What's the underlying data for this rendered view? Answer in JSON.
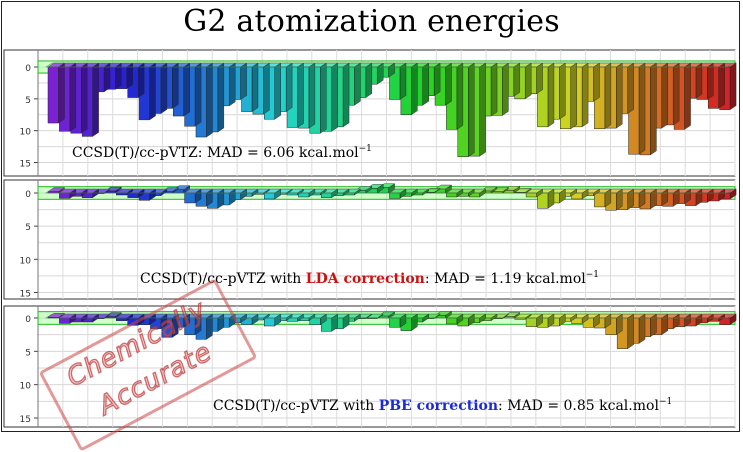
{
  "title": "G2 atomization energies",
  "stamp": {
    "line1": "Chemically",
    "line2": "Accurate"
  },
  "panel_label_parts": [
    {
      "pre": "CCSD(T)/cc-pVTZ: MAD = 6.06 kcal.mol",
      "highlight": "",
      "highlight_color": "",
      "post": "",
      "sup": "−1"
    },
    {
      "pre": "CCSD(T)/cc-pVTZ with ",
      "highlight": "LDA correction",
      "highlight_color": "#cc1111",
      "post": ": MAD = 1.19 kcal.mol",
      "sup": "−1"
    },
    {
      "pre": "CCSD(T)/cc-pVTZ with ",
      "highlight": "PBE correction",
      "highlight_color": "#1a2ad6",
      "post": ": MAD = 0.85 kcal.mol",
      "sup": "−1"
    }
  ],
  "chart_data": [
    {
      "type": "bar",
      "title": "CCSD(T)/cc-pVTZ: MAD = 6.06 kcal.mol−1",
      "y_ticks": [
        0,
        -5,
        -10,
        -15
      ],
      "y_tick_labels": [
        "0",
        "5",
        "10",
        "15"
      ],
      "ylim": [
        -16,
        1
      ],
      "grid": true,
      "band_color": "#7cff6a",
      "values": [
        -8.8,
        -10.1,
        -10.4,
        -10.9,
        -3.9,
        -3.5,
        -3.4,
        -4.8,
        -8.3,
        -7.3,
        -6.5,
        -7.7,
        -9.3,
        -11.0,
        -10.2,
        -6.1,
        -5.1,
        -7.0,
        -7.4,
        -8.2,
        -7.0,
        -9.5,
        -9.6,
        -10.4,
        -10.1,
        -9.4,
        -6.0,
        -4.8,
        -2.7,
        -1.6,
        -5.1,
        -7.5,
        -6.0,
        -4.5,
        -6.0,
        -9.8,
        -14.1,
        -14.0,
        -7.7,
        -7.6,
        -4.6,
        -5.0,
        -4.2,
        -9.4,
        -8.2,
        -9.7,
        -9.4,
        -5.4,
        -9.7,
        -9.6,
        -7.3,
        -13.7,
        -13.8,
        -9.6,
        -9.1,
        -9.8,
        -4.9,
        -5.1,
        -6.5,
        -6.7
      ]
    },
    {
      "type": "bar",
      "title": "CCSD(T)/cc-pVTZ with LDA correction: MAD = 1.19 kcal.mol−1",
      "y_ticks": [
        0,
        -5,
        -10,
        -15
      ],
      "y_tick_labels": [
        "0",
        "5",
        "10",
        "15"
      ],
      "ylim": [
        -16,
        1
      ],
      "grid": true,
      "band_color": "#7cff6a",
      "values": [
        0.2,
        -0.8,
        -0.5,
        -0.7,
        0.0,
        0.3,
        -0.3,
        -0.7,
        -1.1,
        -0.4,
        0.2,
        0.5,
        -1.5,
        -2.0,
        -2.3,
        -1.8,
        -1.0,
        -0.5,
        -0.2,
        -0.9,
        -0.2,
        -0.3,
        -0.6,
        -0.3,
        -0.7,
        -0.4,
        -0.3,
        0.4,
        0.7,
        0.8,
        -0.8,
        -0.5,
        -0.3,
        0.1,
        0.6,
        -0.6,
        -0.5,
        -0.6,
        0.3,
        0.2,
        0.4,
        0.1,
        -0.6,
        -2.3,
        -1.5,
        -0.5,
        -0.9,
        -0.4,
        -2.1,
        -2.6,
        -2.5,
        -2.2,
        -2.4,
        -1.9,
        -2.0,
        -1.6,
        -1.9,
        -1.4,
        -1.2,
        -0.9
      ]
    },
    {
      "type": "bar",
      "title": "CCSD(T)/cc-pVTZ with PBE correction: MAD = 0.85 kcal.mol−1",
      "y_ticks": [
        0,
        -5,
        -10,
        -15
      ],
      "y_tick_labels": [
        "0",
        "5",
        "10",
        "15"
      ],
      "ylim": [
        -16,
        1
      ],
      "grid": true,
      "band_color": "#7cff6a",
      "values": [
        0.1,
        -0.8,
        -0.6,
        -0.6,
        -0.1,
        0.2,
        -0.4,
        -1.1,
        -1.0,
        -1.6,
        -2.9,
        -1.4,
        -2.5,
        -3.2,
        -2.0,
        -1.4,
        -0.7,
        -1.0,
        -0.3,
        -1.2,
        -0.4,
        -0.5,
        -0.4,
        -1.0,
        -2.0,
        -1.6,
        -0.5,
        -0.1,
        0.0,
        0.3,
        -1.4,
        -1.9,
        -0.6,
        0.0,
        0.4,
        -0.9,
        -1.2,
        -0.7,
        -0.4,
        -0.1,
        0.2,
        -0.2,
        -1.3,
        -1.4,
        -1.2,
        -0.5,
        -0.8,
        -1.4,
        -1.5,
        -2.5,
        -4.6,
        -3.8,
        -2.8,
        -2.5,
        -1.6,
        -1.3,
        -1.2,
        -0.7,
        -0.5,
        -1.0
      ]
    }
  ]
}
